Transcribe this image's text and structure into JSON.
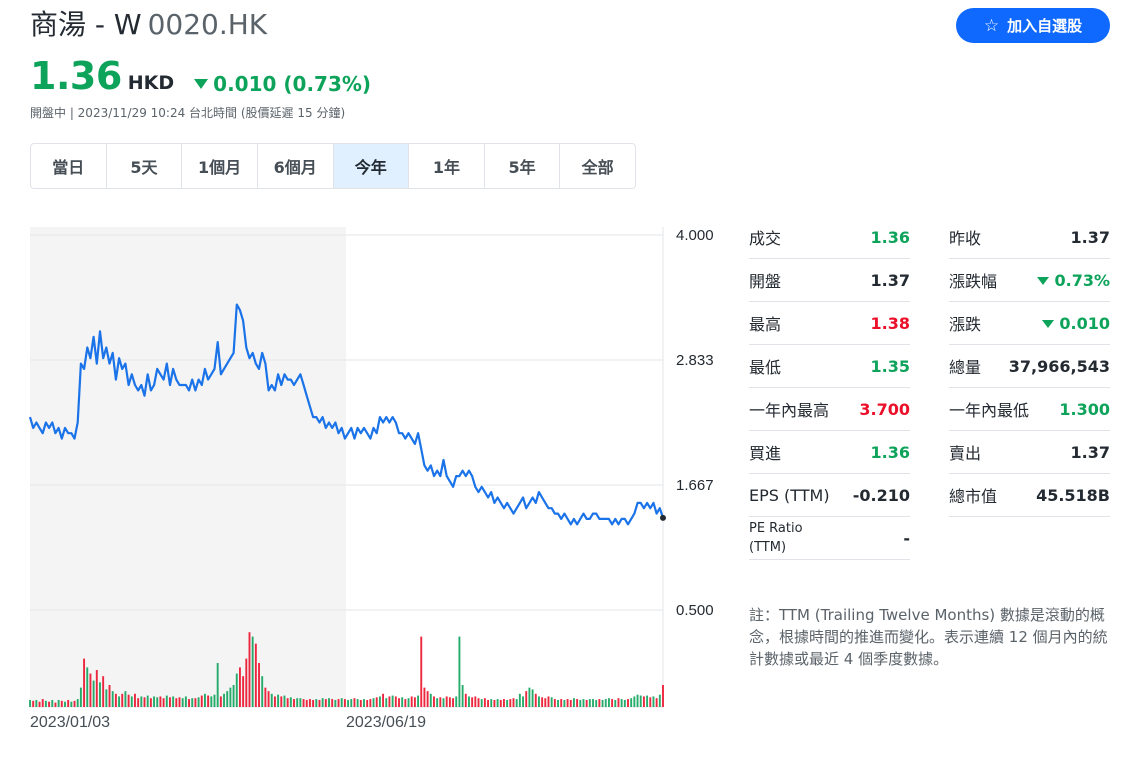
{
  "header": {
    "company": "商湯 - W",
    "ticker": "0020.HK",
    "price": "1.36",
    "currency": "HKD",
    "change": "0.010 (0.73%)",
    "market_time": "開盤中 | 2023/11/29 10:24 台北時間 (股價延遲 15 分鐘)",
    "watch_button": "加入自選股"
  },
  "range_tabs": [
    {
      "label": "當日",
      "active": false
    },
    {
      "label": "5天",
      "active": false
    },
    {
      "label": "1個月",
      "active": false
    },
    {
      "label": "6個月",
      "active": false
    },
    {
      "label": "今年",
      "active": true
    },
    {
      "label": "1年",
      "active": false
    },
    {
      "label": "5年",
      "active": false
    },
    {
      "label": "全部",
      "active": false
    }
  ],
  "stats_left": [
    {
      "label": "成交",
      "value": "1.36",
      "color": "green"
    },
    {
      "label": "開盤",
      "value": "1.37",
      "color": "neutral"
    },
    {
      "label": "最高",
      "value": "1.38",
      "color": "red"
    },
    {
      "label": "最低",
      "value": "1.35",
      "color": "green"
    },
    {
      "label": "一年內最高",
      "value": "3.700",
      "color": "red"
    },
    {
      "label": "買進",
      "value": "1.36",
      "color": "green"
    },
    {
      "label": "EPS (TTM)",
      "value": "-0.210",
      "color": "neutral"
    },
    {
      "label": "PE Ratio (TTM)",
      "value": "-",
      "color": "neutral"
    }
  ],
  "stats_right": [
    {
      "label": "昨收",
      "value": "1.37",
      "color": "neutral"
    },
    {
      "label": "漲跌幅",
      "value": "0.73%",
      "color": "green-down"
    },
    {
      "label": "漲跌",
      "value": "0.010",
      "color": "green-down"
    },
    {
      "label": "總量",
      "value": "37,966,543",
      "color": "neutral"
    },
    {
      "label": "一年內最低",
      "value": "1.300",
      "color": "green"
    },
    {
      "label": "賣出",
      "value": "1.37",
      "color": "neutral"
    },
    {
      "label": "總市值",
      "value": "45.518B",
      "color": "neutral"
    }
  ],
  "note": "註：TTM (Trailing Twelve Months) 數據是滾動的概念，根據時間的推進而變化。表示連續 12 個月內的統計數據或最近 4 個季度數據。",
  "colors": {
    "up": "#0da35a",
    "down": "#eb0f29",
    "line": "#1a73e8",
    "accent": "#0f69ff"
  },
  "chart_data": {
    "type": "line",
    "y_ticks": [
      "4.000",
      "2.833",
      "1.667",
      "0.500"
    ],
    "x_ticks": [
      "2023/01/03",
      "2023/06/19"
    ],
    "ylim": [
      0.5,
      4.0
    ],
    "grid": true,
    "series": [
      {
        "values": [
          2.3,
          2.2,
          2.25,
          2.2,
          2.15,
          2.25,
          2.2,
          2.25,
          2.15,
          2.2,
          2.1,
          2.2,
          2.15,
          2.15,
          2.1,
          2.25,
          2.8,
          2.75,
          2.95,
          2.85,
          3.05,
          2.8,
          3.1,
          2.85,
          2.95,
          2.8,
          2.9,
          2.65,
          2.85,
          2.75,
          2.8,
          2.6,
          2.7,
          2.6,
          2.55,
          2.6,
          2.5,
          2.7,
          2.55,
          2.6,
          2.75,
          2.7,
          2.65,
          2.8,
          2.6,
          2.75,
          2.65,
          2.6,
          2.6,
          2.6,
          2.55,
          2.65,
          2.55,
          2.65,
          2.6,
          2.75,
          2.65,
          2.7,
          2.75,
          3.0,
          2.7,
          2.75,
          2.8,
          2.85,
          2.9,
          3.35,
          3.3,
          3.2,
          2.95,
          2.85,
          2.9,
          2.8,
          2.75,
          2.9,
          2.8,
          2.55,
          2.6,
          2.55,
          2.7,
          2.6,
          2.7,
          2.65,
          2.65,
          2.6,
          2.65,
          2.7,
          2.6,
          2.5,
          2.4,
          2.3,
          2.3,
          2.25,
          2.3,
          2.2,
          2.25,
          2.2,
          2.25,
          2.15,
          2.2,
          2.1,
          2.15,
          2.2,
          2.1,
          2.2,
          2.15,
          2.2,
          2.15,
          2.1,
          2.2,
          2.15,
          2.3,
          2.25,
          2.3,
          2.25,
          2.3,
          2.25,
          2.15,
          2.15,
          2.1,
          2.15,
          2.1,
          2.05,
          2.15,
          2.0,
          1.85,
          1.8,
          1.85,
          1.75,
          1.8,
          1.75,
          1.9,
          1.75,
          1.7,
          1.65,
          1.75,
          1.75,
          1.8,
          1.75,
          1.8,
          1.75,
          1.65,
          1.6,
          1.65,
          1.6,
          1.55,
          1.6,
          1.5,
          1.55,
          1.5,
          1.45,
          1.5,
          1.45,
          1.4,
          1.45,
          1.5,
          1.55,
          1.45,
          1.5,
          1.55,
          1.5,
          1.6,
          1.55,
          1.5,
          1.45,
          1.45,
          1.4,
          1.4,
          1.35,
          1.4,
          1.35,
          1.3,
          1.35,
          1.3,
          1.35,
          1.4,
          1.35,
          1.35,
          1.4,
          1.4,
          1.35,
          1.35,
          1.35,
          1.35,
          1.3,
          1.35,
          1.3,
          1.35,
          1.35,
          1.3,
          1.35,
          1.4,
          1.5,
          1.5,
          1.45,
          1.5,
          1.45,
          1.5,
          1.4,
          1.45,
          1.36
        ]
      }
    ],
    "volume": [
      0.08,
      0.07,
      0.08,
      0.06,
      0.09,
      0.07,
      0.06,
      0.08,
      0.05,
      0.08,
      0.07,
      0.06,
      0.08,
      0.06,
      0.07,
      0.09,
      0.22,
      0.55,
      0.45,
      0.38,
      0.3,
      0.42,
      0.28,
      0.35,
      0.2,
      0.25,
      0.18,
      0.15,
      0.12,
      0.15,
      0.18,
      0.14,
      0.12,
      0.15,
      0.1,
      0.12,
      0.11,
      0.13,
      0.1,
      0.12,
      0.11,
      0.12,
      0.1,
      0.13,
      0.11,
      0.12,
      0.1,
      0.11,
      0.1,
      0.12,
      0.09,
      0.1,
      0.1,
      0.11,
      0.13,
      0.15,
      0.13,
      0.12,
      0.14,
      0.5,
      0.12,
      0.15,
      0.18,
      0.22,
      0.25,
      0.38,
      0.45,
      0.35,
      0.55,
      0.85,
      0.8,
      0.72,
      0.5,
      0.35,
      0.22,
      0.18,
      0.15,
      0.12,
      0.14,
      0.12,
      0.13,
      0.1,
      0.11,
      0.09,
      0.1,
      0.1,
      0.09,
      0.08,
      0.09,
      0.08,
      0.09,
      0.08,
      0.1,
      0.09,
      0.1,
      0.09,
      0.08,
      0.09,
      0.1,
      0.09,
      0.08,
      0.09,
      0.1,
      0.09,
      0.08,
      0.09,
      0.08,
      0.09,
      0.1,
      0.11,
      0.12,
      0.15,
      0.1,
      0.12,
      0.13,
      0.12,
      0.1,
      0.11,
      0.09,
      0.1,
      0.12,
      0.11,
      0.13,
      0.8,
      0.22,
      0.18,
      0.15,
      0.12,
      0.1,
      0.11,
      0.1,
      0.12,
      0.11,
      0.1,
      0.12,
      0.8,
      0.25,
      0.15,
      0.12,
      0.11,
      0.12,
      0.1,
      0.09,
      0.1,
      0.08,
      0.09,
      0.08,
      0.09,
      0.08,
      0.09,
      0.08,
      0.09,
      0.1,
      0.09,
      0.15,
      0.12,
      0.18,
      0.22,
      0.2,
      0.15,
      0.12,
      0.11,
      0.1,
      0.12,
      0.11,
      0.09,
      0.08,
      0.09,
      0.08,
      0.09,
      0.08,
      0.1,
      0.09,
      0.08,
      0.09,
      0.08,
      0.09,
      0.09,
      0.08,
      0.09,
      0.08,
      0.09,
      0.1,
      0.09,
      0.08,
      0.1,
      0.09,
      0.08,
      0.09,
      0.1,
      0.12,
      0.14,
      0.13,
      0.12,
      0.13,
      0.11,
      0.12,
      0.1,
      0.14,
      0.25
    ]
  }
}
